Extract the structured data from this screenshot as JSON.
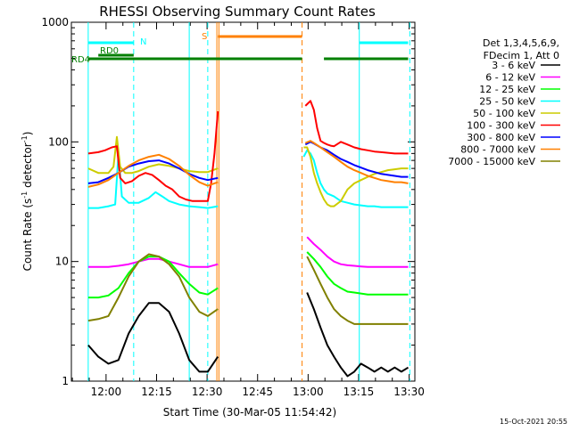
{
  "chart_data": {
    "type": "line",
    "title": "RHESSI Observing Summary Count Rates",
    "xlabel": "Start Time (30-Mar-05 11:54:42)",
    "ylabel": "Count Rate (s^-1 detector^-1)",
    "ylabel_parts": {
      "pre": "Count Rate (s",
      "sup": "-1",
      "mid": " detector",
      "sup2": "-1",
      "post": ")"
    },
    "y_scale": "log",
    "xlim_min": [
      -5,
      97
    ],
    "ylim": [
      1,
      1000
    ],
    "x_ticks": [
      {
        "v": 5.3,
        "label": "12:00"
      },
      {
        "v": 20.3,
        "label": "12:15"
      },
      {
        "v": 35.3,
        "label": "12:30"
      },
      {
        "v": 50.3,
        "label": "12:45"
      },
      {
        "v": 65.3,
        "label": "13:00"
      },
      {
        "v": 80.3,
        "label": "13:15"
      },
      {
        "v": 95.3,
        "label": "13:30"
      }
    ],
    "y_ticks": [
      {
        "v": 1,
        "label": "1"
      },
      {
        "v": 10,
        "label": "10"
      },
      {
        "v": 100,
        "label": "100"
      },
      {
        "v": 1000,
        "label": "1000"
      }
    ],
    "legend": {
      "header1": "Det 1,3,4,5,6,9,",
      "header2": "FDecim 1, Att 0",
      "placement": "right"
    },
    "timestamp": "15-Oct-2021 20:55",
    "series": [
      {
        "name": "3 - 6 keV",
        "color": "#000000",
        "x": [
          0,
          3,
          6,
          9,
          12,
          15,
          18,
          21,
          24,
          27,
          30,
          33,
          35.5,
          38.5,
          63.5,
          65,
          67,
          69,
          71,
          73,
          75,
          77,
          79,
          81,
          83,
          85,
          87,
          89,
          91,
          93,
          95
        ],
        "y": [
          2,
          1.6,
          1.4,
          1.5,
          2.5,
          3.5,
          4.5,
          4.5,
          3.8,
          2.5,
          1.5,
          1.2,
          1.2,
          1.6,
          null,
          5.5,
          4,
          2.8,
          2,
          1.6,
          1.3,
          1.1,
          1.2,
          1.4,
          1.3,
          1.2,
          1.3,
          1.2,
          1.3,
          1.2,
          1.3
        ]
      },
      {
        "name": "6 - 12 keV",
        "color": "#ff00ff",
        "x": [
          0,
          3,
          6,
          9,
          12,
          15,
          18,
          21,
          24,
          27,
          30,
          33,
          35.5,
          38.5,
          63.5,
          65,
          67,
          69,
          71,
          73,
          75,
          77,
          79,
          81,
          83,
          85,
          87,
          89,
          91,
          93,
          95
        ],
        "y": [
          9,
          9,
          9,
          9.2,
          9.5,
          10,
          10.5,
          10.5,
          10,
          9.5,
          9,
          9,
          9,
          9.5,
          null,
          16,
          14,
          12.5,
          11,
          10,
          9.5,
          9.3,
          9.2,
          9.1,
          9,
          9,
          9,
          9,
          9,
          9,
          9
        ]
      },
      {
        "name": "12 - 25 keV",
        "color": "#00ff00",
        "x": [
          0,
          3,
          6,
          9,
          12,
          15,
          18,
          21,
          24,
          27,
          30,
          33,
          35.5,
          38.5,
          63.5,
          65,
          67,
          69,
          71,
          73,
          75,
          77,
          79,
          81,
          83,
          85,
          87,
          89,
          91,
          93,
          95
        ],
        "y": [
          5,
          5,
          5.2,
          6,
          8,
          10,
          11,
          11,
          10,
          8,
          6.5,
          5.5,
          5.3,
          6,
          null,
          12,
          10.5,
          9,
          7.5,
          6.5,
          6,
          5.6,
          5.5,
          5.4,
          5.3,
          5.3,
          5.3,
          5.3,
          5.3,
          5.3,
          5.3
        ]
      },
      {
        "name": "25 - 50 keV",
        "color": "#00ffff",
        "x": [
          0,
          3,
          6,
          8,
          9,
          10,
          12,
          15,
          18,
          20,
          22,
          24,
          27,
          30,
          33,
          35.5,
          38.5,
          63.5,
          64,
          65,
          66,
          67,
          68,
          69,
          70,
          71,
          73,
          75,
          77,
          79,
          81,
          83,
          85,
          87,
          89,
          91,
          93,
          95
        ],
        "y": [
          28,
          28,
          29,
          30,
          80,
          35,
          31,
          31,
          34,
          38,
          35,
          32,
          30,
          29,
          28.5,
          28,
          29,
          null,
          75,
          85,
          80,
          70,
          55,
          45,
          40,
          37,
          35,
          32,
          31,
          30,
          29.5,
          29,
          29,
          28.5,
          28.5,
          28.5,
          28.5,
          28.5
        ]
      },
      {
        "name": "50 - 100 keV",
        "color": "#cccc00",
        "x": [
          0,
          3,
          6,
          7.5,
          8.5,
          9.5,
          11,
          13,
          15,
          18,
          21,
          24,
          27,
          30,
          33,
          35.5,
          38.5,
          63.5,
          64,
          65,
          66,
          67,
          68,
          69,
          70,
          71,
          72,
          73,
          75,
          77,
          79,
          81,
          83,
          85,
          87,
          89,
          91,
          93,
          95
        ],
        "y": [
          60,
          55,
          55,
          62,
          110,
          62,
          55,
          55,
          57,
          62,
          65,
          63,
          60,
          57,
          56,
          56,
          60,
          null,
          90,
          90,
          75,
          55,
          45,
          38,
          33,
          30,
          29,
          29,
          32,
          40,
          45,
          48,
          51,
          54,
          56,
          58,
          59,
          60,
          60
        ]
      },
      {
        "name": "100 - 300 keV",
        "color": "#ff0000",
        "x": [
          0,
          3,
          5,
          7,
          8.5,
          9.5,
          11,
          13,
          15,
          17,
          19,
          21,
          23,
          25,
          27,
          29,
          31,
          33,
          35.5,
          36.5,
          37.5,
          38.5,
          63.5,
          64.5,
          66,
          67,
          68,
          69,
          70,
          71,
          72,
          73,
          75,
          77,
          79,
          81,
          83,
          85,
          87,
          89,
          91,
          93,
          95
        ],
        "y": [
          80,
          82,
          85,
          90,
          92,
          50,
          45,
          47,
          52,
          55,
          53,
          48,
          43,
          40,
          35,
          33,
          32,
          32,
          32,
          45,
          80,
          180,
          null,
          200,
          220,
          185,
          130,
          102,
          98,
          95,
          93,
          92,
          100,
          95,
          90,
          87,
          85,
          83,
          82,
          81,
          80,
          80,
          80
        ]
      },
      {
        "name": "300 - 800 keV",
        "color": "#0000ff",
        "x": [
          0,
          3,
          6,
          9,
          12,
          15,
          18,
          21,
          24,
          27,
          30,
          33,
          35.5,
          38.5,
          63.5,
          64.5,
          66,
          67,
          69,
          71,
          73,
          75,
          77,
          79,
          81,
          83,
          85,
          87,
          89,
          91,
          93,
          95
        ],
        "y": [
          45,
          46,
          50,
          55,
          62,
          66,
          69,
          70,
          66,
          60,
          54,
          50,
          48,
          50,
          null,
          95,
          100,
          97,
          90,
          85,
          78,
          72,
          68,
          64,
          61,
          58,
          56,
          54,
          53,
          52,
          51,
          51
        ]
      },
      {
        "name": "800 - 7000 keV",
        "color": "#ff8000",
        "x": [
          0,
          3,
          6,
          9,
          12,
          15,
          18,
          21,
          24,
          27,
          30,
          33,
          35.5,
          38.5,
          63.5,
          64.5,
          66,
          67,
          69,
          71,
          73,
          75,
          77,
          79,
          81,
          83,
          85,
          87,
          89,
          91,
          93,
          95
        ],
        "y": [
          42,
          44,
          48,
          55,
          63,
          70,
          75,
          78,
          72,
          63,
          53,
          46,
          43,
          46,
          null,
          98,
          102,
          98,
          90,
          82,
          75,
          68,
          62,
          58,
          55,
          52,
          50,
          48,
          47,
          46,
          46,
          45
        ]
      },
      {
        "name": "7000 - 15000 keV",
        "color": "#808000",
        "x": [
          0,
          3,
          6,
          9,
          12,
          15,
          18,
          21,
          24,
          27,
          30,
          33,
          35.5,
          38.5,
          63.5,
          65,
          67,
          69,
          71,
          73,
          75,
          77,
          79,
          81,
          83,
          85,
          87,
          89,
          91,
          93,
          95
        ],
        "y": [
          3.2,
          3.3,
          3.5,
          5,
          7.5,
          10,
          11.5,
          11,
          9.5,
          7.5,
          5,
          3.8,
          3.5,
          4,
          null,
          11,
          8.5,
          6.5,
          5,
          4,
          3.5,
          3.2,
          3,
          3,
          3,
          3,
          3,
          3,
          3,
          3,
          3
        ]
      }
    ],
    "state_bars": [
      {
        "label": "N",
        "color": "#00ffff",
        "segments": [
          [
            0,
            13.5
          ],
          [
            80.5,
            95
          ]
        ]
      },
      {
        "label": "RD0",
        "color": "#008000",
        "segments": [
          [
            3,
            13.5
          ]
        ]
      },
      {
        "label": "RD4",
        "color": "#008000",
        "segments": [
          [
            0,
            30
          ],
          [
            30,
            63.5
          ],
          [
            70,
            80.5
          ],
          [
            80.5,
            95
          ]
        ]
      },
      {
        "label": "S",
        "color": "#ff8000",
        "segments": [
          [
            38.5,
            63.5
          ]
        ]
      }
    ],
    "vlines": [
      {
        "x": 0,
        "color": "#00ffff",
        "style": "solid"
      },
      {
        "x": 13.5,
        "color": "#00ffff",
        "style": "dashed"
      },
      {
        "x": 30,
        "color": "#00ffff",
        "style": "solid"
      },
      {
        "x": 35.5,
        "color": "#00ffff",
        "style": "dashed"
      },
      {
        "x": 38.2,
        "color": "#ff8000",
        "style": "solid"
      },
      {
        "x": 38.8,
        "color": "#ff8000",
        "style": "solid"
      },
      {
        "x": 63.5,
        "color": "#ff8000",
        "style": "dashed"
      },
      {
        "x": 80.5,
        "color": "#00ffff",
        "style": "solid"
      },
      {
        "x": 95.5,
        "color": "#00ffff",
        "style": "dashed"
      }
    ]
  }
}
